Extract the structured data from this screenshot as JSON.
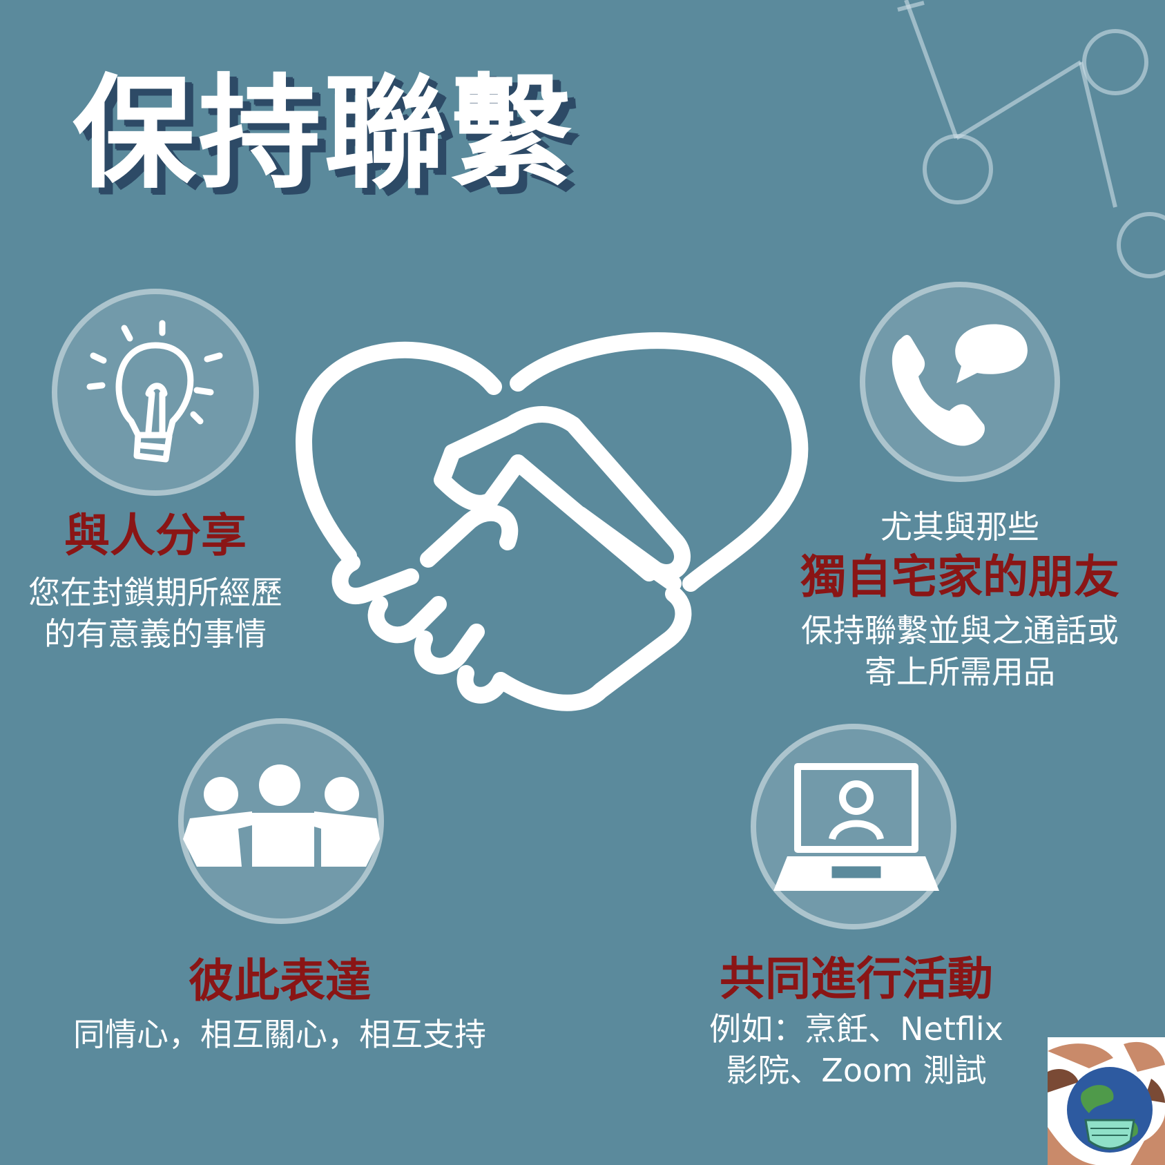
{
  "title": "保持聯繫",
  "colors": {
    "background": "#5b8a9c",
    "heading": "#8a1515",
    "title_shadow": "#2d4a66",
    "text": "#ffffff"
  },
  "share": {
    "icon": "lightbulb-icon",
    "heading": "與人分享",
    "line1": "您在封鎖期所經歷",
    "line2": "的有意義的事情"
  },
  "friends": {
    "icon": "phone-chat-icon",
    "intro": "尤其與那些",
    "heading": "獨自宅家的朋友",
    "line1": "保持聯繫並與之通話或",
    "line2": "寄上所需用品"
  },
  "express": {
    "icon": "group-people-icon",
    "heading": "彼此表達",
    "line1": "同情心，相互關心，相互支持"
  },
  "activities": {
    "icon": "laptop-video-call-icon",
    "heading": "共同進行活動",
    "line1": "例如：烹飪、Netflix",
    "line2": "影院、Zoom 測試"
  },
  "center_icon": "heart-handshake-icon",
  "corner_logo": "earth-mask-hands-logo"
}
